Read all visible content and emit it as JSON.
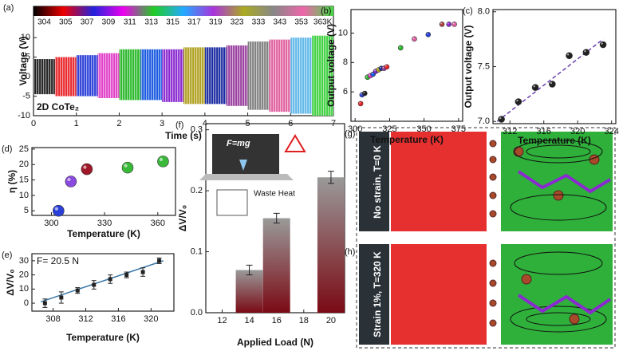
{
  "chart_data": [
    {
      "type": "band",
      "label": "(a)",
      "xlabel": "Time (s)",
      "ylabel": "Voltage (V)",
      "annotation": "2D CoTe₂",
      "xlim": [
        0,
        7
      ],
      "xticks": [
        0,
        1,
        2,
        3,
        4,
        5,
        6,
        7
      ],
      "ylim": [
        -10,
        18
      ],
      "yticks": [
        -10,
        -5,
        0,
        5,
        10
      ],
      "series": [
        {
          "name": "304",
          "color": "#222222",
          "x": [
            0,
            0.5
          ],
          "values": [
            -4.5,
            4.5
          ]
        },
        {
          "name": "305",
          "color": "#e8262a",
          "x": [
            0.5,
            1
          ],
          "values": [
            -5,
            5
          ]
        },
        {
          "name": "307",
          "color": "#2a3fd8",
          "x": [
            1,
            1.5
          ],
          "values": [
            -5,
            5.5
          ]
        },
        {
          "name": "309",
          "color": "#e040c8",
          "x": [
            1.5,
            2
          ],
          "values": [
            -5.5,
            6
          ]
        },
        {
          "name": "311",
          "color": "#2ab82a",
          "x": [
            2,
            2.5
          ],
          "values": [
            -6,
            7
          ]
        },
        {
          "name": "313",
          "color": "#1a5ae0",
          "x": [
            2.5,
            3
          ],
          "values": [
            -6,
            7
          ]
        },
        {
          "name": "315",
          "color": "#8a2ad0",
          "x": [
            3,
            3.5
          ],
          "values": [
            -6.5,
            7
          ]
        },
        {
          "name": "317",
          "color": "#b0a020",
          "x": [
            3.5,
            4
          ],
          "values": [
            -7,
            7.5
          ]
        },
        {
          "name": "319",
          "color": "#1a2aa0",
          "x": [
            4,
            4.5
          ],
          "values": [
            -7,
            7.5
          ]
        },
        {
          "name": "323",
          "color": "#9a40a0",
          "x": [
            4.5,
            5
          ],
          "values": [
            -7.5,
            8
          ]
        },
        {
          "name": "333",
          "color": "#808080",
          "x": [
            5,
            5.5
          ],
          "values": [
            -8.5,
            9
          ]
        },
        {
          "name": "343",
          "color": "#e060a0",
          "x": [
            5.5,
            6
          ],
          "values": [
            -9,
            9.5
          ]
        },
        {
          "name": "353",
          "color": "#60b8e8",
          "x": [
            6,
            6.5
          ],
          "values": [
            -9.5,
            10
          ]
        },
        {
          "name": "363K",
          "color": "#40d040",
          "x": [
            6.5,
            7
          ],
          "values": [
            -10,
            10.5
          ]
        }
      ]
    },
    {
      "type": "scatter",
      "label": "(b)",
      "xlabel": "Temperature (K)",
      "ylabel": "Output voltage (V)",
      "xlim": [
        297,
        378
      ],
      "xticks": [
        300,
        325,
        350,
        375
      ],
      "ylim": [
        4,
        11.6
      ],
      "yticks": [
        6,
        8,
        10
      ],
      "x": [
        304,
        305,
        307,
        309,
        311,
        313,
        315,
        317,
        319,
        321,
        323,
        333,
        343,
        353,
        363,
        368,
        372
      ],
      "values": [
        5.2,
        5.8,
        5.9,
        7.0,
        7.1,
        7.2,
        7.4,
        7.5,
        7.6,
        7.6,
        7.7,
        9.0,
        9.6,
        9.9,
        10.6,
        10.6,
        10.6
      ],
      "colors": [
        "#e8262a",
        "#2a3fd8",
        "#222222",
        "#2ab82a",
        "#e040c8",
        "#1a5ae0",
        "#8a2ad0",
        "#b0a020",
        "#1a2aa0",
        "#9a40a0",
        "#e8262a",
        "#2ab82a",
        "#e060a0",
        "#2a3fd8",
        "#b04040",
        "#8a2ad0",
        "#e060a0"
      ]
    },
    {
      "type": "scatter",
      "label": "(c)",
      "xlabel": "Temperature (K)",
      "ylabel": "Output voltage (V)",
      "xlim": [
        310,
        324.5
      ],
      "xticks": [
        312,
        316,
        320,
        324
      ],
      "ylim": [
        6.98,
        8.02
      ],
      "yticks": [
        {
          "value": 7,
          "label": "7.0"
        },
        {
          "value": 7.5,
          "label": "7.5"
        },
        {
          "value": 8,
          "label": "8.0"
        }
      ],
      "x": [
        311,
        313,
        315,
        317,
        319,
        321,
        323
      ],
      "values": [
        7.02,
        7.18,
        7.31,
        7.34,
        7.6,
        7.63,
        7.7
      ],
      "color": "#222222",
      "fit_line": {
        "color": "#6a3fb0",
        "x": [
          310.5,
          323
        ],
        "values": [
          7.0,
          7.75
        ]
      }
    },
    {
      "type": "scatter",
      "label": "(d)",
      "xlabel": "Temperature (K)",
      "ylabel": "η (%)",
      "xlim": [
        289,
        370
      ],
      "xticks": [
        300,
        330,
        360
      ],
      "ylim": [
        3.5,
        25.5
      ],
      "yticks": [
        5,
        10,
        15,
        20,
        25
      ],
      "x": [
        304,
        311,
        320,
        343,
        363
      ],
      "values": [
        5,
        14.5,
        18.5,
        19,
        21
      ],
      "colors": [
        "#2a3fd8",
        "#8a4ae0",
        "#a01828",
        "#3ab83a",
        "#3ab83a"
      ]
    },
    {
      "type": "scatter",
      "label": "(e)",
      "xlabel": "Temperature (K)",
      "ylabel": "ΔV/V₀",
      "annotation": "F= 20.5 N",
      "xlim": [
        305.4,
        322.8
      ],
      "xticks": [
        308,
        312,
        316,
        320
      ],
      "ylim": [
        -5.6,
        35
      ],
      "yticks": [
        0,
        10,
        20,
        30
      ],
      "x": [
        307,
        309,
        311,
        313,
        315,
        317,
        319,
        321
      ],
      "values": [
        0,
        4,
        9,
        13,
        17,
        20,
        22,
        30
      ],
      "errors": [
        3,
        4,
        2,
        3,
        3,
        2,
        3,
        2
      ],
      "color": "#222222",
      "fit_line": {
        "color": "#3a78a8",
        "x": [
          306.5,
          321.5
        ],
        "values": [
          1,
          30
        ]
      }
    },
    {
      "type": "bar",
      "label": "(f)",
      "xlabel": "Applied Load (N)",
      "ylabel": "ΔV/V₀",
      "annotations": [
        "F=mg",
        "Waste Heat"
      ],
      "xlim": [
        10.8,
        21
      ],
      "xticks": [
        12,
        14,
        16,
        18,
        20
      ],
      "ylim": [
        0,
        0.31
      ],
      "yticks": [
        {
          "value": 0,
          "label": "0.0"
        },
        {
          "value": 0.1,
          "label": "0.1"
        },
        {
          "value": 0.2,
          "label": "0.2"
        },
        {
          "value": 0.3,
          "label": "0.3"
        }
      ],
      "x": [
        14,
        16,
        20
      ],
      "values": [
        0.07,
        0.155,
        0.222
      ],
      "errors": [
        0.008,
        0.008,
        0.01
      ]
    }
  ],
  "structure_panels": [
    {
      "label": "(g)",
      "caption": "No strain, T=0 K"
    },
    {
      "label": "(h)",
      "caption": "Strain 1%, T=320 K"
    }
  ]
}
